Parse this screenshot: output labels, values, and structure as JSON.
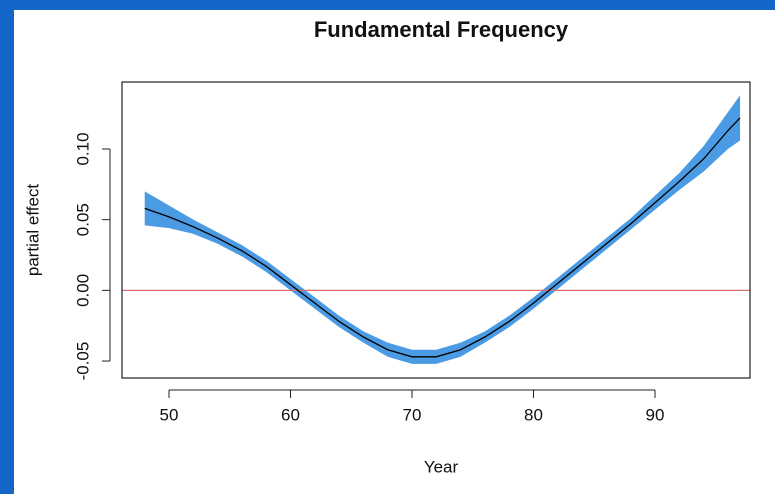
{
  "chart_data": {
    "type": "band-line",
    "title": "Fundamental Frequency",
    "x_label": "Year",
    "y_label": "partial effect",
    "x": [
      48,
      50,
      52,
      54,
      56,
      58,
      60,
      62,
      64,
      66,
      68,
      70,
      72,
      74,
      76,
      78,
      80,
      82,
      84,
      86,
      88,
      90,
      92,
      94,
      96,
      97
    ],
    "values": [
      0.058,
      0.052,
      0.045,
      0.037,
      0.028,
      0.017,
      0.004,
      -0.009,
      -0.022,
      -0.033,
      -0.042,
      -0.047,
      -0.047,
      -0.042,
      -0.033,
      -0.022,
      -0.009,
      0.005,
      0.019,
      0.033,
      0.047,
      0.062,
      0.077,
      0.093,
      0.113,
      0.122
    ],
    "lower": [
      0.046,
      0.044,
      0.04,
      0.033,
      0.024,
      0.013,
      0.0,
      -0.013,
      -0.026,
      -0.037,
      -0.047,
      -0.052,
      -0.052,
      -0.047,
      -0.037,
      -0.026,
      -0.013,
      0.001,
      0.015,
      0.029,
      0.043,
      0.057,
      0.071,
      0.084,
      0.1,
      0.106
    ],
    "upper": [
      0.07,
      0.06,
      0.05,
      0.041,
      0.032,
      0.021,
      0.008,
      -0.005,
      -0.018,
      -0.029,
      -0.037,
      -0.042,
      -0.042,
      -0.037,
      -0.029,
      -0.018,
      -0.005,
      0.009,
      0.023,
      0.037,
      0.051,
      0.067,
      0.083,
      0.102,
      0.126,
      0.138
    ],
    "color": "#000000",
    "band_color": "#4a9be3",
    "hline": 0,
    "hline_color": "#d9706f",
    "xlim": [
      46.13,
      97.82
    ],
    "xticks": [
      50,
      60,
      70,
      80,
      90
    ],
    "ylim": [
      -0.062,
      0.1474
    ],
    "yticks": [
      -0.05,
      {
        "value": 0,
        "label": "0.00"
      },
      0.05,
      {
        "value": 0.1,
        "label": "0.10"
      }
    ],
    "grid": false
  }
}
